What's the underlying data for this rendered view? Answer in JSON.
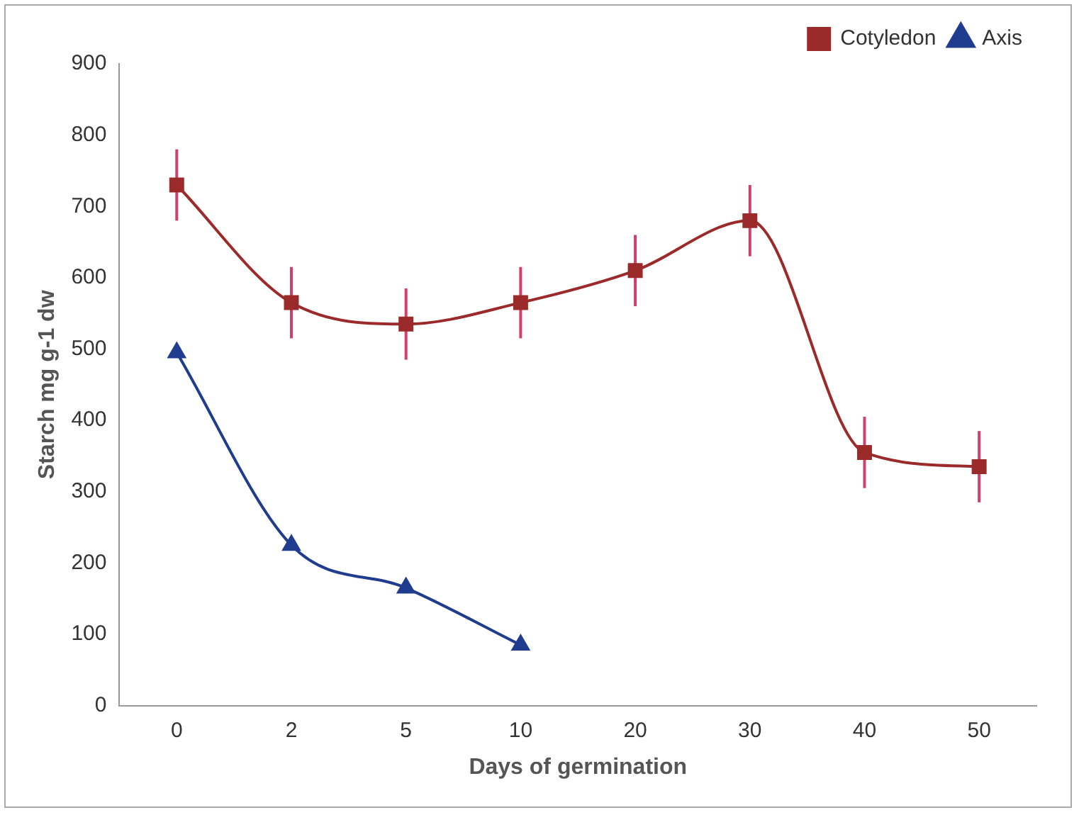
{
  "chart_data": {
    "type": "line",
    "xlabel": "Days of germination",
    "ylabel": "Starch mg g-1 dw",
    "categories": [
      "0",
      "2",
      "5",
      "10",
      "20",
      "30",
      "40",
      "50"
    ],
    "series": [
      {
        "name": "Cotyledon",
        "color": "#9b2a2a",
        "marker": "square",
        "values": [
          730,
          565,
          535,
          565,
          610,
          680,
          355,
          335
        ],
        "errors": [
          50,
          50,
          50,
          50,
          50,
          50,
          50,
          50
        ]
      },
      {
        "name": "Axis",
        "color": "#1f3c8f",
        "marker": "triangle",
        "values": [
          495,
          225,
          165,
          85,
          null,
          null,
          null,
          null
        ]
      }
    ],
    "ylim": [
      0,
      900
    ],
    "yticks": [
      0,
      100,
      200,
      300,
      400,
      500,
      600,
      700,
      800,
      900
    ],
    "grid": false,
    "legend": "top right"
  }
}
